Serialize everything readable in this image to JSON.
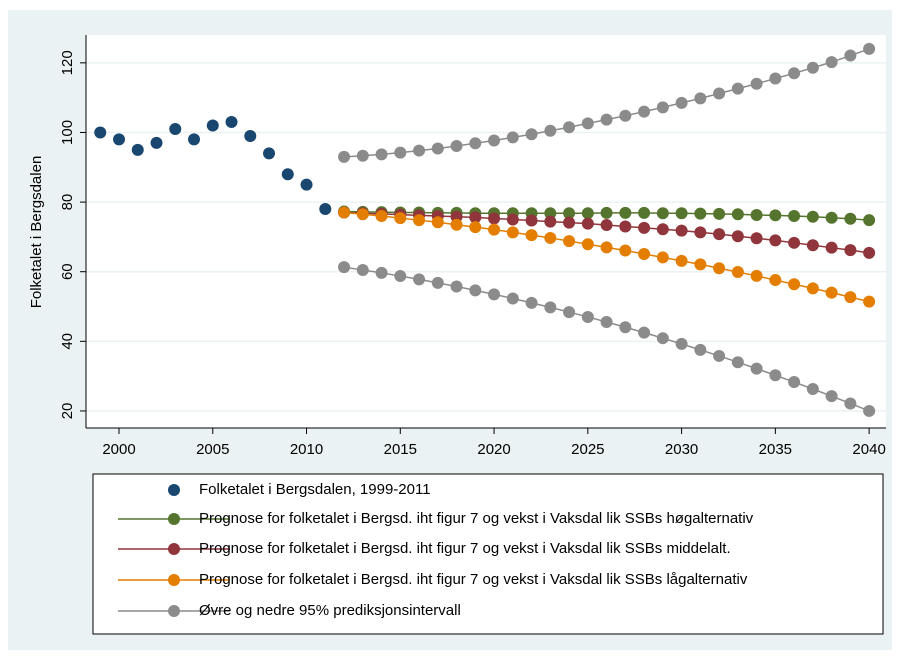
{
  "chart_data": {
    "type": "line",
    "ylabel": "Folketalet i Bergsdalen",
    "xlim": [
      1998.24,
      2040.9
    ],
    "ylim": [
      15.1,
      128
    ],
    "xticks": [
      2000,
      2005,
      2010,
      2015,
      2020,
      2025,
      2030,
      2035,
      2040
    ],
    "yticks": [
      20,
      40,
      60,
      80,
      100,
      120
    ],
    "grid": true,
    "series": [
      {
        "name": "Folketalet i Bergsdalen, 1999-2011",
        "color": "#1a476f",
        "line": false,
        "x": [
          1999,
          2000,
          2001,
          2002,
          2003,
          2004,
          2005,
          2006,
          2007,
          2008,
          2009,
          2010,
          2011
        ],
        "values": [
          100,
          98,
          95,
          97,
          101,
          98,
          102,
          103,
          99,
          94,
          88,
          85,
          78
        ]
      },
      {
        "name": "Prognose for folketalet i Bergsd. iht figur 7 og vekst i Vaksdal lik SSBs høgalternativ",
        "color": "#55752f",
        "line": true,
        "x": [
          2012,
          2013,
          2014,
          2015,
          2016,
          2017,
          2018,
          2019,
          2020,
          2021,
          2022,
          2023,
          2024,
          2025,
          2026,
          2027,
          2028,
          2029,
          2030,
          2031,
          2032,
          2033,
          2034,
          2035,
          2036,
          2037,
          2038,
          2039,
          2040
        ],
        "values": [
          77.3,
          77.2,
          77.1,
          77.0,
          77.0,
          76.9,
          76.9,
          76.8,
          76.8,
          76.8,
          76.8,
          76.8,
          76.8,
          76.8,
          76.9,
          76.9,
          76.9,
          76.8,
          76.8,
          76.7,
          76.6,
          76.5,
          76.3,
          76.2,
          76.0,
          75.8,
          75.5,
          75.2,
          74.8
        ]
      },
      {
        "name": "Prognose for folketalet i Bergsd. iht figur 7 og vekst i Vaksdal lik SSBs middelalt.",
        "color": "#90353b",
        "line": true,
        "x": [
          2012,
          2013,
          2014,
          2015,
          2016,
          2017,
          2018,
          2019,
          2020,
          2021,
          2022,
          2023,
          2024,
          2025,
          2026,
          2027,
          2028,
          2029,
          2030,
          2031,
          2032,
          2033,
          2034,
          2035,
          2036,
          2037,
          2038,
          2039,
          2040
        ],
        "values": [
          77.0,
          76.8,
          76.6,
          76.4,
          76.2,
          76.0,
          75.8,
          75.6,
          75.3,
          75.0,
          74.7,
          74.4,
          74.1,
          73.8,
          73.4,
          73.0,
          72.6,
          72.2,
          71.8,
          71.3,
          70.8,
          70.2,
          69.6,
          69.0,
          68.3,
          67.6,
          66.9,
          66.2,
          65.4
        ]
      },
      {
        "name": "Prognose for folketalet i Bergsd. iht figur 7 og vekst i Vaksdal lik SSBs lågalternativ",
        "color": "#e37e00",
        "line": true,
        "x": [
          2012,
          2013,
          2014,
          2015,
          2016,
          2017,
          2018,
          2019,
          2020,
          2021,
          2022,
          2023,
          2024,
          2025,
          2026,
          2027,
          2028,
          2029,
          2030,
          2031,
          2032,
          2033,
          2034,
          2035,
          2036,
          2037,
          2038,
          2039,
          2040
        ],
        "values": [
          77.0,
          76.5,
          76.0,
          75.4,
          74.8,
          74.2,
          73.5,
          72.8,
          72.1,
          71.3,
          70.5,
          69.7,
          68.8,
          67.9,
          67.0,
          66.1,
          65.1,
          64.1,
          63.1,
          62.1,
          61.0,
          59.9,
          58.8,
          57.6,
          56.4,
          55.2,
          54.0,
          52.7,
          51.4
        ]
      },
      {
        "name": "Øvre og nedre 95% prediksjonsintervall",
        "color": "#8b8b8b",
        "line": true,
        "x": [
          2012,
          2013,
          2014,
          2015,
          2016,
          2017,
          2018,
          2019,
          2020,
          2021,
          2022,
          2023,
          2024,
          2025,
          2026,
          2027,
          2028,
          2029,
          2030,
          2031,
          2032,
          2033,
          2034,
          2035,
          2036,
          2037,
          2038,
          2039,
          2040
        ],
        "values": [
          93.0,
          93.3,
          93.7,
          94.2,
          94.8,
          95.4,
          96.1,
          96.9,
          97.7,
          98.6,
          99.5,
          100.5,
          101.5,
          102.6,
          103.7,
          104.8,
          106.0,
          107.2,
          108.5,
          109.8,
          111.2,
          112.6,
          114.0,
          115.5,
          117.0,
          118.6,
          120.2,
          122.1,
          124.0
        ]
      },
      {
        "color": "#8b8b8b",
        "line": true,
        "x": [
          2012,
          2013,
          2014,
          2015,
          2016,
          2017,
          2018,
          2019,
          2020,
          2021,
          2022,
          2023,
          2024,
          2025,
          2026,
          2027,
          2028,
          2029,
          2030,
          2031,
          2032,
          2033,
          2034,
          2035,
          2036,
          2037,
          2038,
          2039,
          2040
        ],
        "values": [
          61.3,
          60.5,
          59.65,
          58.75,
          57.8,
          56.8,
          55.75,
          54.65,
          53.5,
          52.3,
          51.05,
          49.75,
          48.4,
          47.0,
          45.55,
          44.05,
          42.5,
          40.9,
          39.25,
          37.55,
          35.8,
          34.0,
          32.15,
          30.25,
          28.3,
          26.3,
          24.25,
          22.15,
          20.0
        ]
      }
    ]
  }
}
